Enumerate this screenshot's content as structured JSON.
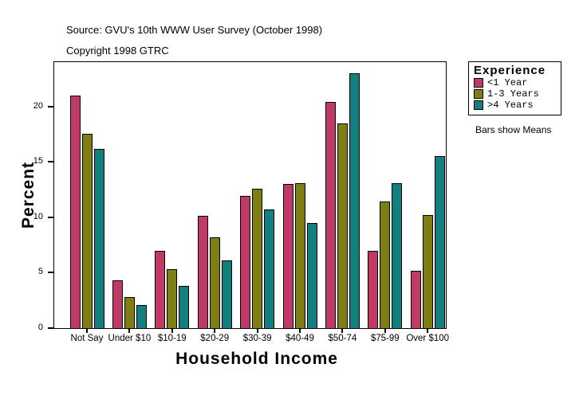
{
  "header": {
    "source_line": "Source: GVU's 10th WWW User Survey (October 1998)",
    "copyright_line": "Copyright 1998 GTRC"
  },
  "legend": {
    "title": "Experience",
    "note": "Bars show Means"
  },
  "colors": {
    "series_lt1": "#c03a68",
    "series_1to3": "#7e7e12",
    "series_gt4": "#157e7e",
    "bar_edge": "#000000"
  },
  "chart_data": {
    "type": "bar",
    "title": "",
    "xlabel": "Household Income",
    "ylabel": "Percent",
    "categories": [
      "Not Say",
      "Under $10",
      "$10-19",
      "$20-29",
      "$30-39",
      "$40-49",
      "$50-74",
      "$75-99",
      "Over $100"
    ],
    "series": [
      {
        "name": "<1 Year",
        "color": "#c03a68",
        "values": [
          21.0,
          4.3,
          7.0,
          10.1,
          11.9,
          13.0,
          20.4,
          7.0,
          5.2
        ]
      },
      {
        "name": "1-3 Years",
        "color": "#7e7e12",
        "values": [
          17.5,
          2.8,
          5.3,
          8.2,
          12.6,
          13.1,
          18.5,
          11.4,
          10.2
        ]
      },
      {
        "name": ">4 Years",
        "color": "#157e7e",
        "values": [
          16.2,
          2.1,
          3.8,
          6.1,
          10.7,
          9.5,
          23.0,
          13.1,
          15.5
        ]
      }
    ],
    "ylim": [
      0,
      24
    ],
    "yticks": [
      0,
      5,
      10,
      15,
      20
    ],
    "grid": false,
    "legend_position": "right",
    "legend_note": "Bars show Means"
  }
}
